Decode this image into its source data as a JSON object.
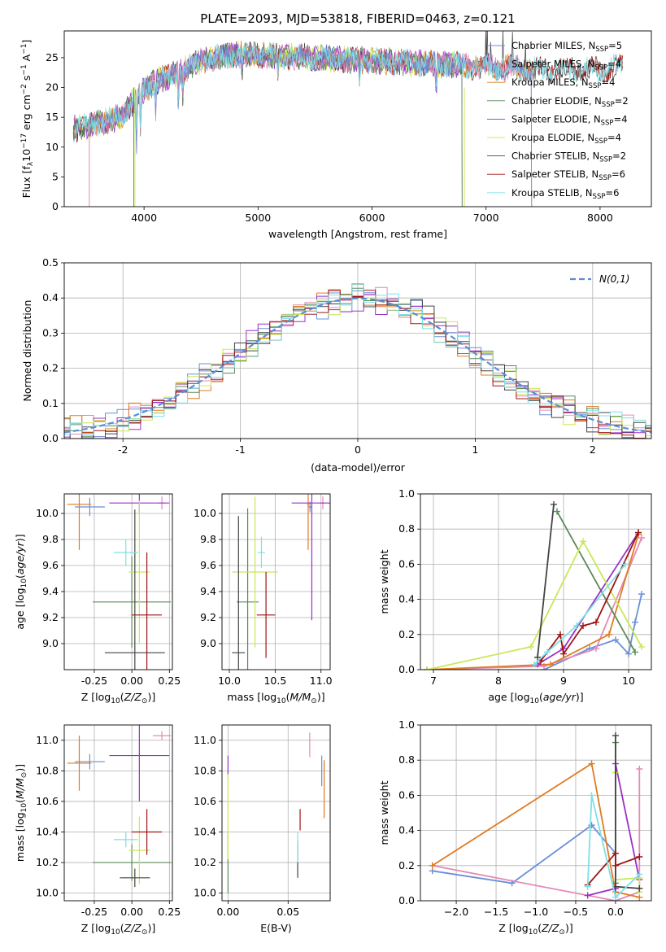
{
  "figure": {
    "title": "PLATE=2093, MJD=53818, FIBERID=0463, z=0.121"
  },
  "colors": {
    "Chabrier MILES": "#6a8fd8",
    "Salpeter MILES": "#e38ab8",
    "Kroupa MILES": "#e07b22",
    "Chabrier ELODIE": "#5a8a5a",
    "Salpeter ELODIE": "#9b30c8",
    "Kroupa ELODIE": "#c8e85a",
    "Chabrier STELIB": "#444444",
    "Salpeter STELIB": "#a01414",
    "Kroupa STELIB": "#7fdfe6",
    "gaussian": "#5b8ed6"
  },
  "chart_data": [
    {
      "id": "spectrum",
      "type": "line",
      "title": "PLATE=2093, MJD=53818, FIBERID=0463, z=0.121",
      "xlabel": "wavelength [Angstrom, rest frame]",
      "ylabel": "Flux [fλ10⁻¹⁷ erg cm⁻² s⁻¹ A⁻¹]",
      "xlim": [
        3300,
        8450
      ],
      "ylim": [
        0,
        29.5
      ],
      "xticks": [
        4000,
        5000,
        6000,
        7000,
        8000
      ],
      "yticks": [
        0,
        5,
        10,
        15,
        20,
        25
      ],
      "grid": false,
      "legend_position": "upper-right",
      "legend": [
        "Chabrier MILES, NSSP=5",
        "Salpeter MILES, NSSP=4",
        "Kroupa MILES, NSSP=4",
        "Chabrier ELODIE, NSSP=2",
        "Salpeter ELODIE, NSSP=4",
        "Kroupa ELODIE, NSSP=4",
        "Chabrier STELIB, NSSP=2",
        "Salpeter STELIB, NSSP=6",
        "Kroupa STELIB, NSSP=6"
      ],
      "continuum": {
        "x": [
          3380,
          3500,
          3600,
          3700,
          3800,
          3900,
          4000,
          4100,
          4300,
          4500,
          4800,
          5000,
          5500,
          6000,
          6500,
          7000,
          7500,
          8000,
          8200
        ],
        "y": [
          13,
          13.5,
          14,
          14.5,
          15,
          17.5,
          19.5,
          21,
          22.5,
          24.5,
          25.5,
          25.5,
          25,
          24.5,
          24,
          23.5,
          23,
          23,
          23.5
        ]
      }
    },
    {
      "id": "residuals",
      "type": "line",
      "xlabel": "(data-model)/error",
      "ylabel": "Normed distribution",
      "xlim": [
        -2.5,
        2.5
      ],
      "ylim": [
        0,
        0.5
      ],
      "xticks": [
        -2,
        -1,
        0,
        1,
        2
      ],
      "yticks": [
        0.0,
        0.1,
        0.2,
        0.3,
        0.4,
        0.5
      ],
      "grid": true,
      "legend_position": "upper-right",
      "legend": [
        "N(0,1)"
      ],
      "gaussian": {
        "mean": 0,
        "sigma": 1
      }
    },
    {
      "id": "age_vs_Z",
      "type": "scatter",
      "xlabel": "Z [log10(Z/Z⊙)]",
      "ylabel": "age  [log10(age/yr)]",
      "xlim": [
        -0.45,
        0.27
      ],
      "ylim": [
        8.8,
        10.15
      ],
      "xticks": [
        -0.25,
        0.0,
        0.25
      ],
      "yticks": [
        9.0,
        9.2,
        9.4,
        9.6,
        9.8,
        10.0
      ],
      "grid": true,
      "points": [
        {
          "series": "Chabrier MILES",
          "x": -0.28,
          "y": 10.05,
          "xerr": 0.1,
          "yerr": 0.07
        },
        {
          "series": "Salpeter MILES",
          "x": 0.2,
          "y": 10.08,
          "xerr": 0.02,
          "yerr": 0.05
        },
        {
          "series": "Kroupa MILES",
          "x": -0.35,
          "y": 10.07,
          "xerr": 0.08,
          "yerr": 0.35
        },
        {
          "series": "Chabrier ELODIE",
          "x": 0.0,
          "y": 9.32,
          "xerr": 0.26,
          "yerr": 0.35
        },
        {
          "series": "Salpeter ELODIE",
          "x": 0.05,
          "y": 10.08,
          "xerr": 0.2,
          "yerr": 0.08
        },
        {
          "series": "Kroupa ELODIE",
          "x": 0.05,
          "y": 9.55,
          "xerr": 0.07,
          "yerr": 0.55
        },
        {
          "series": "Chabrier STELIB",
          "x": 0.02,
          "y": 8.93,
          "xerr": 0.2,
          "yerr": 1.1
        },
        {
          "series": "Salpeter STELIB",
          "x": 0.1,
          "y": 9.22,
          "xerr": 0.1,
          "yerr": 0.48
        },
        {
          "series": "Kroupa STELIB",
          "x": -0.04,
          "y": 9.7,
          "xerr": 0.08,
          "yerr": 0.1
        }
      ]
    },
    {
      "id": "age_vs_mass",
      "type": "scatter",
      "xlabel": "mass [log10(M/M⊙)]",
      "ylabel": "",
      "xlim": [
        9.92,
        11.1
      ],
      "ylim": [
        8.8,
        10.15
      ],
      "xticks": [
        10.0,
        10.5,
        11.0
      ],
      "yticks": [
        9.0,
        9.2,
        9.4,
        9.6,
        9.8,
        10.0
      ],
      "grid": true,
      "points": [
        {
          "series": "Chabrier MILES",
          "x": 10.88,
          "y": 10.05,
          "xerr": 0.02,
          "yerr": 0.04
        },
        {
          "series": "Salpeter MILES",
          "x": 11.02,
          "y": 10.08,
          "xerr": 0.02,
          "yerr": 0.05
        },
        {
          "series": "Kroupa MILES",
          "x": 10.86,
          "y": 10.07,
          "xerr": 0.01,
          "yerr": 0.35
        },
        {
          "series": "Chabrier ELODIE",
          "x": 10.2,
          "y": 9.32,
          "xerr": 0.12,
          "yerr": 0.72
        },
        {
          "series": "Salpeter ELODIE",
          "x": 10.9,
          "y": 10.08,
          "xerr": 0.22,
          "yerr": 0.9
        },
        {
          "series": "Kroupa ELODIE",
          "x": 10.28,
          "y": 9.55,
          "xerr": 0.25,
          "yerr": 0.58
        },
        {
          "series": "Chabrier STELIB",
          "x": 10.1,
          "y": 8.93,
          "xerr": 0.07,
          "yerr": 1.05
        },
        {
          "series": "Salpeter STELIB",
          "x": 10.4,
          "y": 9.22,
          "xerr": 0.1,
          "yerr": 0.33
        },
        {
          "series": "Kroupa STELIB",
          "x": 10.35,
          "y": 9.7,
          "xerr": 0.04,
          "yerr": 0.12
        }
      ]
    },
    {
      "id": "mass_weight_vs_age",
      "type": "line",
      "xlabel": "age  [log10(age/yr)]",
      "ylabel": "mass weight",
      "xlim": [
        6.8,
        10.35
      ],
      "ylim": [
        0,
        1.0
      ],
      "xticks": [
        7,
        8,
        9,
        10
      ],
      "yticks": [
        0.0,
        0.2,
        0.4,
        0.6,
        0.8,
        1.0
      ],
      "grid": true,
      "series": [
        {
          "series": "Chabrier MILES",
          "x": [
            8.7,
            9.4,
            9.8,
            10.0,
            10.1,
            10.2
          ],
          "y": [
            0.0,
            0.12,
            0.17,
            0.09,
            0.27,
            0.43
          ]
        },
        {
          "series": "Salpeter MILES",
          "x": [
            6.9,
            8.7,
            9.5,
            10.2
          ],
          "y": [
            0.0,
            0.02,
            0.12,
            0.75
          ]
        },
        {
          "series": "Kroupa MILES",
          "x": [
            6.9,
            8.8,
            9.7,
            10.15
          ],
          "y": [
            0.0,
            0.03,
            0.2,
            0.77
          ]
        },
        {
          "series": "Chabrier ELODIE",
          "x": [
            8.9,
            10.1
          ],
          "y": [
            0.9,
            0.1
          ]
        },
        {
          "series": "Salpeter ELODIE",
          "x": [
            8.6,
            9.0,
            10.15
          ],
          "y": [
            0.03,
            0.12,
            0.78
          ]
        },
        {
          "series": "Kroupa ELODIE",
          "x": [
            6.9,
            8.5,
            9.3,
            10.2
          ],
          "y": [
            0.0,
            0.13,
            0.73,
            0.13
          ]
        },
        {
          "series": "Chabrier STELIB",
          "x": [
            8.6,
            8.85
          ],
          "y": [
            0.07,
            0.94
          ]
        },
        {
          "series": "Salpeter STELIB",
          "x": [
            8.65,
            8.95,
            9.0,
            9.3,
            9.5,
            10.15
          ],
          "y": [
            0.05,
            0.2,
            0.09,
            0.25,
            0.27,
            0.78
          ]
        },
        {
          "series": "Kroupa STELIB",
          "x": [
            8.55,
            8.75,
            9.2,
            9.95
          ],
          "y": [
            0.03,
            0.1,
            0.25,
            0.6
          ]
        }
      ]
    },
    {
      "id": "mass_vs_Z",
      "type": "scatter",
      "xlabel": "Z [log10(Z/Z⊙)]",
      "ylabel": "mass [log10(M/M⊙)]",
      "xlim": [
        -0.45,
        0.27
      ],
      "ylim": [
        9.95,
        11.1
      ],
      "xticks": [
        -0.25,
        0.0,
        0.25
      ],
      "yticks": [
        10.0,
        10.2,
        10.4,
        10.6,
        10.8,
        11.0
      ],
      "grid": true,
      "points": [
        {
          "series": "Chabrier MILES",
          "x": -0.28,
          "y": 10.86,
          "xerr": 0.1,
          "yerr": 0.05
        },
        {
          "series": "Salpeter MILES",
          "x": 0.2,
          "y": 11.03,
          "xerr": 0.06,
          "yerr": 0.03
        },
        {
          "series": "Kroupa MILES",
          "x": -0.35,
          "y": 10.85,
          "xerr": 0.08,
          "yerr": 0.18
        },
        {
          "series": "Chabrier ELODIE",
          "x": 0.0,
          "y": 10.2,
          "xerr": 0.26,
          "yerr": 0.12
        },
        {
          "series": "Salpeter ELODIE",
          "x": 0.05,
          "y": 10.9,
          "xerr": 0.2,
          "yerr": 0.3
        },
        {
          "series": "Kroupa ELODIE",
          "x": 0.05,
          "y": 10.28,
          "xerr": 0.07,
          "yerr": 0.22
        },
        {
          "series": "Chabrier STELIB",
          "x": 0.02,
          "y": 10.1,
          "xerr": 0.1,
          "yerr": 0.06
        },
        {
          "series": "Salpeter STELIB",
          "x": 0.1,
          "y": 10.4,
          "xerr": 0.1,
          "yerr": 0.15
        },
        {
          "series": "Kroupa STELIB",
          "x": -0.04,
          "y": 10.35,
          "xerr": 0.08,
          "yerr": 0.05
        }
      ]
    },
    {
      "id": "mass_vs_EBV",
      "type": "scatter",
      "xlabel": "E(B-V)",
      "ylabel": "",
      "xlim": [
        -0.005,
        0.085
      ],
      "ylim": [
        9.95,
        11.1
      ],
      "xticks": [
        0.0,
        0.05
      ],
      "yticks": [
        10.0,
        10.2,
        10.4,
        10.6,
        10.8,
        11.0
      ],
      "grid": true,
      "points": [
        {
          "series": "Chabrier MILES",
          "x": 0.078,
          "y": 10.8,
          "xerr": 0,
          "yerr": 0.1
        },
        {
          "series": "Salpeter MILES",
          "x": 0.068,
          "y": 10.97,
          "xerr": 0,
          "yerr": 0.08
        },
        {
          "series": "Kroupa MILES",
          "x": 0.08,
          "y": 10.68,
          "xerr": 0,
          "yerr": 0.19
        },
        {
          "series": "Chabrier ELODIE",
          "x": 0.0,
          "y": 10.2,
          "xerr": 0,
          "yerr": 0.2
        },
        {
          "series": "Salpeter ELODIE",
          "x": 0.0,
          "y": 10.83,
          "xerr": 0,
          "yerr": 0.07
        },
        {
          "series": "Kroupa ELODIE",
          "x": 0.0,
          "y": 10.5,
          "xerr": 0,
          "yerr": 0.28
        },
        {
          "series": "Chabrier STELIB",
          "x": 0.058,
          "y": 10.22,
          "xerr": 0,
          "yerr": 0.12
        },
        {
          "series": "Salpeter STELIB",
          "x": 0.06,
          "y": 10.48,
          "xerr": 0,
          "yerr": 0.07
        },
        {
          "series": "Kroupa STELIB",
          "x": 0.058,
          "y": 10.3,
          "xerr": 0,
          "yerr": 0.1
        }
      ]
    },
    {
      "id": "mass_weight_vs_Z",
      "type": "line",
      "xlabel": "Z [log10(Z/Z⊙)]",
      "ylabel": "mass weight",
      "xlim": [
        -2.45,
        0.45
      ],
      "ylim": [
        0,
        1.0
      ],
      "xticks": [
        -2.0,
        -1.5,
        -1.0,
        -0.5,
        0.0
      ],
      "yticks": [
        0.0,
        0.2,
        0.4,
        0.6,
        0.8,
        1.0
      ],
      "grid": true,
      "series": [
        {
          "series": "Chabrier MILES",
          "x": [
            -2.3,
            -1.3,
            -0.3,
            0.0
          ],
          "y": [
            0.17,
            0.1,
            0.43,
            0.27
          ]
        },
        {
          "series": "Salpeter MILES",
          "x": [
            -2.3,
            0.0,
            0.3,
            0.3
          ],
          "y": [
            0.2,
            0.0,
            0.05,
            0.75
          ]
        },
        {
          "series": "Kroupa MILES",
          "x": [
            -2.3,
            -0.3,
            0.0,
            0.3
          ],
          "y": [
            0.2,
            0.78,
            0.05,
            0.02
          ]
        },
        {
          "series": "Chabrier ELODIE",
          "x": [
            0.0,
            0.0
          ],
          "y": [
            0.9,
            0.1
          ]
        },
        {
          "series": "Salpeter ELODIE",
          "x": [
            -0.35,
            0.0,
            0.0,
            0.3
          ],
          "y": [
            0.03,
            0.07,
            0.78,
            0.12
          ]
        },
        {
          "series": "Kroupa ELODIE",
          "x": [
            0.0,
            0.0,
            0.3,
            0.3
          ],
          "y": [
            0.73,
            0.12,
            0.13,
            0.05
          ]
        },
        {
          "series": "Chabrier STELIB",
          "x": [
            0.0,
            0.0,
            0.3
          ],
          "y": [
            0.94,
            0.08,
            0.07
          ]
        },
        {
          "series": "Salpeter STELIB",
          "x": [
            -0.35,
            0.0,
            0.0,
            0.3
          ],
          "y": [
            0.09,
            0.27,
            0.2,
            0.25
          ]
        },
        {
          "series": "Kroupa STELIB",
          "x": [
            -0.35,
            -0.3,
            0.0,
            0.3
          ],
          "y": [
            0.08,
            0.6,
            0.02,
            0.15
          ]
        }
      ]
    }
  ]
}
